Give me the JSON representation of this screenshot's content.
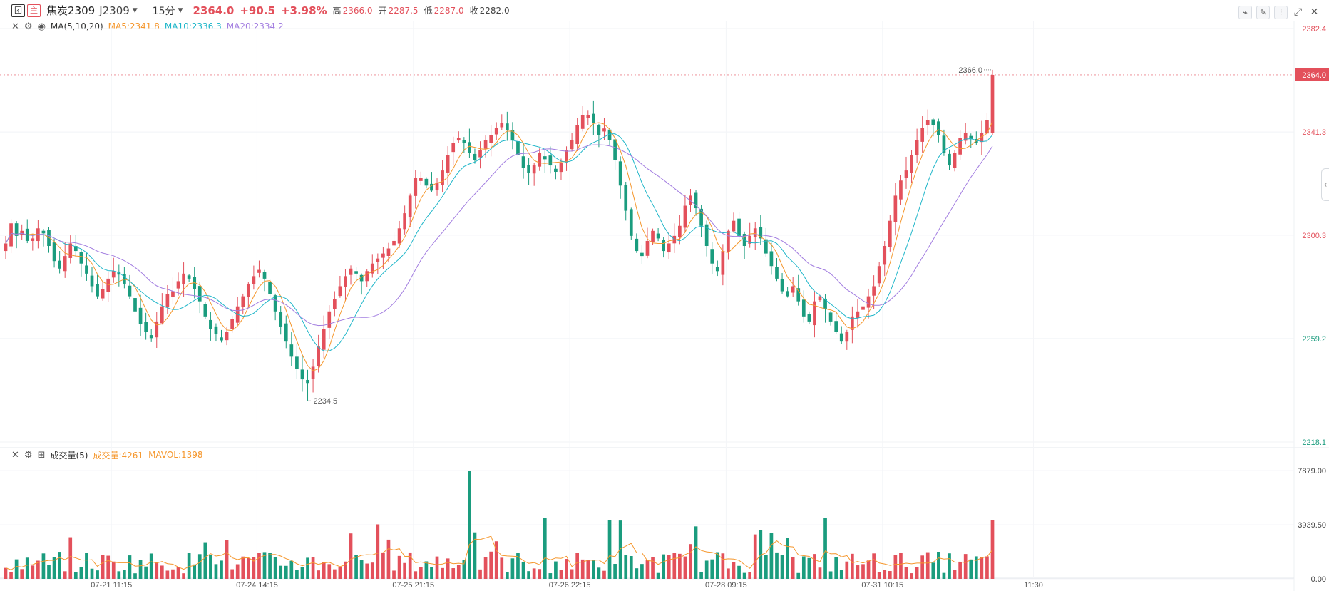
{
  "header": {
    "badge_a": "团",
    "badge_b": "主",
    "symbol": "焦炭2309",
    "code": "J2309",
    "period": "15分",
    "last_price": "2364.0",
    "change": "+90.5",
    "change_pct": "+3.98%",
    "high_label": "高",
    "high": "2366.0",
    "open_label": "开",
    "open": "2287.5",
    "low_label": "低",
    "low": "2287.0",
    "close_label": "收",
    "close": "2282.0"
  },
  "ma_legend": {
    "name": "MA(5,10,20)",
    "ma5": "MA5:2341.8",
    "ma10": "MA10:2336.3",
    "ma20": "MA20:2334.2"
  },
  "vol_legend": {
    "name": "成交量(5)",
    "vol": "成交量:4261",
    "mavol": "MAVOL:1398"
  },
  "colors": {
    "up": "#e3505b",
    "down": "#1a9c7e",
    "ma5": "#f5972d",
    "ma10": "#1fb6c9",
    "ma20": "#a27de0",
    "mavol": "#f5972d"
  },
  "chart_data": [
    {
      "type": "candlestick",
      "y_axis_ticks": [
        {
          "label": "2382.4",
          "value": 2382.4,
          "color": "#e3505b"
        },
        {
          "label": "2341.3",
          "value": 2341.3,
          "color": "#e3505b"
        },
        {
          "label": "2300.3",
          "value": 2300.3,
          "color": "#e3505b"
        },
        {
          "label": "2259.2",
          "value": 2259.2,
          "color": "#1a9c7e"
        },
        {
          "label": "2218.1",
          "value": 2218.1,
          "color": "#1a9c7e"
        }
      ],
      "ylim": [
        2218.1,
        2382.4
      ],
      "x_axis_labels": [
        "07-21 11:15",
        "07-24 14:15",
        "07-25 21:15",
        "07-26 22:15",
        "07-28 09:15",
        "07-31 10:15",
        "11:30"
      ],
      "last_price_marker": "2364.0",
      "annotations": [
        {
          "label": "2366.0",
          "value": 2366.0,
          "note": "high"
        },
        {
          "label": "2234.5",
          "value": 2234.5,
          "note": "low"
        }
      ],
      "candle_path": [
        2297,
        2305,
        2300,
        2302,
        2298,
        2299,
        2303,
        2301,
        2296,
        2290,
        2287,
        2292,
        2297,
        2294,
        2289,
        2285,
        2280,
        2276,
        2279,
        2283,
        2286,
        2285,
        2281,
        2276,
        2270,
        2265,
        2262,
        2260,
        2266,
        2272,
        2277,
        2278,
        2282,
        2285,
        2283,
        2279,
        2274,
        2268,
        2263,
        2261,
        2259,
        2262,
        2267,
        2272,
        2276,
        2281,
        2284,
        2286,
        2283,
        2277,
        2270,
        2264,
        2258,
        2252,
        2247,
        2243,
        2242,
        2248,
        2256,
        2263,
        2270,
        2275,
        2280,
        2284,
        2287,
        2285,
        2282,
        2286,
        2289,
        2291,
        2293,
        2295,
        2298,
        2303,
        2309,
        2316,
        2323,
        2323,
        2320,
        2318,
        2321,
        2326,
        2332,
        2337,
        2339,
        2337,
        2333,
        2330,
        2334,
        2338,
        2340,
        2343,
        2345,
        2342,
        2338,
        2332,
        2327,
        2325,
        2328,
        2333,
        2331,
        2328,
        2326,
        2329,
        2334,
        2338,
        2344,
        2348,
        2348,
        2345,
        2340,
        2341,
        2338,
        2330,
        2320,
        2310,
        2300,
        2294,
        2292,
        2298,
        2302,
        2299,
        2294,
        2297,
        2300,
        2304,
        2312,
        2316,
        2311,
        2304,
        2296,
        2289,
        2286,
        2294,
        2302,
        2306,
        2300,
        2296,
        2300,
        2303,
        2299,
        2293,
        2288,
        2283,
        2278,
        2276,
        2280,
        2274,
        2268,
        2266,
        2274,
        2276,
        2271,
        2266,
        2262,
        2258,
        2262,
        2268,
        2270,
        2272,
        2276,
        2280,
        2288,
        2296,
        2306,
        2316,
        2322,
        2326,
        2332,
        2338,
        2343,
        2346,
        2344,
        2340,
        2333,
        2328,
        2333,
        2339,
        2341,
        2339,
        2337,
        2341,
        2346,
        2364
      ],
      "volume": {
        "ylim": [
          0,
          7879
        ],
        "y_axis_ticks": [
          "7879.00",
          "3939.50",
          "0.00"
        ],
        "last_volume": 4261,
        "mavol_last": 1398
      }
    }
  ]
}
